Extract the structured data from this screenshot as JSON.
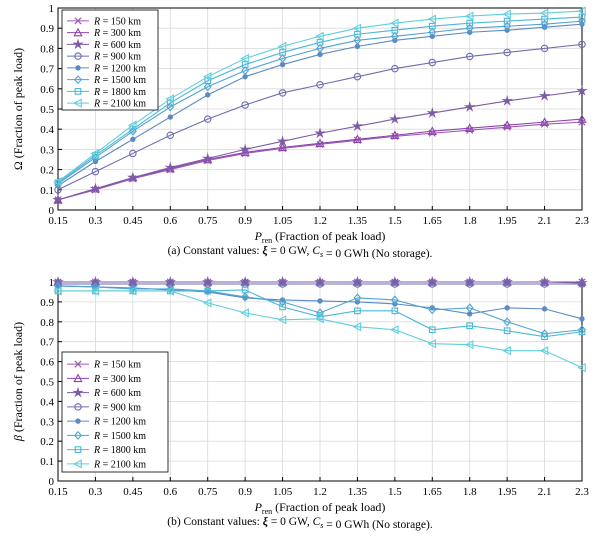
{
  "chart_data": [
    {
      "type": "line",
      "caption": "(a) Constant values: ξ = 0 GW,  Cs = 0 GWh  (No storage).",
      "xlabel": "Pren (Fraction of peak load)",
      "ylabel": "Ω (Fraction of peak load)",
      "x": [
        0.15,
        0.3,
        0.45,
        0.6,
        0.75,
        0.9,
        1.05,
        1.2,
        1.35,
        1.5,
        1.65,
        1.8,
        1.95,
        2.1,
        2.3
      ],
      "x_tick_labels": [
        "0.15",
        "0.3",
        "0.45",
        "0.6",
        "0.75",
        "0.9",
        "1.05",
        "1.2",
        "1.35",
        "1.5",
        "1.65",
        "1.8",
        "1.95",
        "2.1",
        "2.3"
      ],
      "xlim": [
        0.15,
        2.3
      ],
      "ylim": [
        0,
        1
      ],
      "y_ticks": [
        0,
        0.1,
        0.2,
        0.3,
        0.4,
        0.5,
        0.6,
        0.7,
        0.8,
        0.9,
        1
      ],
      "y_tick_labels": [
        "0",
        "0.1",
        "0.2",
        "0.3",
        "0.4",
        "0.5",
        "0.6",
        "0.7",
        "0.8",
        "0.9",
        "1"
      ],
      "grid": true,
      "legend_position": "top-left",
      "series": [
        {
          "name": "R = 150 km",
          "color": "#9b59b6",
          "marker": "x",
          "values": [
            0.05,
            0.1,
            0.155,
            0.2,
            0.245,
            0.28,
            0.305,
            0.325,
            0.345,
            0.365,
            0.38,
            0.395,
            0.41,
            0.425,
            0.435
          ]
        },
        {
          "name": "R = 300 km",
          "color": "#8e44ad",
          "marker": "triangle-up",
          "values": [
            0.05,
            0.105,
            0.16,
            0.205,
            0.25,
            0.285,
            0.31,
            0.33,
            0.35,
            0.37,
            0.39,
            0.405,
            0.42,
            0.435,
            0.45
          ]
        },
        {
          "name": "R = 600 km",
          "color": "#7d5ba6",
          "marker": "star",
          "values": [
            0.05,
            0.105,
            0.16,
            0.21,
            0.255,
            0.3,
            0.34,
            0.38,
            0.415,
            0.45,
            0.48,
            0.51,
            0.54,
            0.565,
            0.59
          ]
        },
        {
          "name": "R = 900 km",
          "color": "#6c6fb0",
          "marker": "circle",
          "values": [
            0.1,
            0.19,
            0.28,
            0.37,
            0.45,
            0.52,
            0.58,
            0.62,
            0.66,
            0.7,
            0.73,
            0.76,
            0.78,
            0.8,
            0.82
          ]
        },
        {
          "name": "R = 1200 km",
          "color": "#5d8ac4",
          "marker": "dot",
          "values": [
            0.12,
            0.24,
            0.35,
            0.46,
            0.57,
            0.66,
            0.72,
            0.77,
            0.81,
            0.84,
            0.86,
            0.88,
            0.89,
            0.905,
            0.92
          ]
        },
        {
          "name": "R = 1500 km",
          "color": "#4fa3d1",
          "marker": "diamond",
          "values": [
            0.13,
            0.26,
            0.39,
            0.51,
            0.61,
            0.69,
            0.75,
            0.8,
            0.84,
            0.86,
            0.88,
            0.9,
            0.91,
            0.92,
            0.935
          ]
        },
        {
          "name": "R = 1800 km",
          "color": "#4ab8d6",
          "marker": "square",
          "values": [
            0.135,
            0.27,
            0.4,
            0.53,
            0.64,
            0.72,
            0.78,
            0.83,
            0.87,
            0.89,
            0.91,
            0.925,
            0.935,
            0.945,
            0.955
          ]
        },
        {
          "name": "R = 2100 km",
          "color": "#5fcfdc",
          "marker": "triangle-left",
          "values": [
            0.14,
            0.28,
            0.42,
            0.55,
            0.66,
            0.75,
            0.81,
            0.86,
            0.9,
            0.925,
            0.945,
            0.96,
            0.97,
            0.975,
            0.985
          ]
        }
      ]
    },
    {
      "type": "line",
      "caption": "(b) Constant values: ξ = 0 GW,  Cs = 0 GWh  (No storage).",
      "xlabel": "Pren (Fraction of peak load)",
      "ylabel": "β (Fraction of peak load)",
      "x": [
        0.15,
        0.3,
        0.45,
        0.6,
        0.75,
        0.9,
        1.05,
        1.2,
        1.35,
        1.5,
        1.65,
        1.8,
        1.95,
        2.1,
        2.3
      ],
      "x_tick_labels": [
        "0.15",
        "0.3",
        "0.45",
        "0.6",
        "0.75",
        "0.9",
        "1.05",
        "1.2",
        "1.35",
        "1.5",
        "1.65",
        "1.8",
        "1.95",
        "2.1",
        "2.3"
      ],
      "xlim": [
        0.15,
        2.3
      ],
      "ylim": [
        0,
        1
      ],
      "y_ticks": [
        0,
        0.1,
        0.2,
        0.3,
        0.4,
        0.5,
        0.6,
        0.7,
        0.8,
        0.9,
        1
      ],
      "y_tick_labels": [
        "0",
        "0.1",
        "0.2",
        "0.3",
        "0.4",
        "0.5",
        "0.6",
        "0.7",
        "0.8",
        "0.9",
        "1"
      ],
      "grid": true,
      "legend_position": "center-left",
      "series": [
        {
          "name": "R = 150 km",
          "color": "#9b59b6",
          "marker": "x",
          "values": [
            1,
            1,
            1,
            1,
            1,
            1,
            1,
            1,
            1,
            1,
            1,
            1,
            1,
            1,
            1
          ]
        },
        {
          "name": "R = 300 km",
          "color": "#8e44ad",
          "marker": "triangle-up",
          "values": [
            1,
            1,
            1,
            1,
            1,
            1,
            1,
            1,
            1,
            1,
            1,
            1,
            1,
            1,
            1
          ]
        },
        {
          "name": "R = 600 km",
          "color": "#7d5ba6",
          "marker": "star",
          "values": [
            1,
            1,
            1,
            1,
            1,
            1,
            1,
            1,
            1,
            1,
            1,
            1,
            1,
            1,
            0.995
          ]
        },
        {
          "name": "R = 900 km",
          "color": "#6c6fb0",
          "marker": "circle",
          "values": [
            0.99,
            0.99,
            0.99,
            0.99,
            0.99,
            0.99,
            0.99,
            0.99,
            0.99,
            0.99,
            0.99,
            0.99,
            0.99,
            0.99,
            0.99
          ]
        },
        {
          "name": "R = 1200 km",
          "color": "#5d8ac4",
          "marker": "dot",
          "values": [
            0.98,
            0.975,
            0.97,
            0.96,
            0.95,
            0.92,
            0.91,
            0.905,
            0.9,
            0.89,
            0.87,
            0.84,
            0.87,
            0.865,
            0.815
          ]
        },
        {
          "name": "R = 1500 km",
          "color": "#4fa3d1",
          "marker": "diamond",
          "values": [
            0.98,
            0.975,
            0.965,
            0.965,
            0.955,
            0.925,
            0.9,
            0.845,
            0.92,
            0.91,
            0.86,
            0.87,
            0.8,
            0.74,
            0.76
          ]
        },
        {
          "name": "R = 1800 km",
          "color": "#4ab8d6",
          "marker": "square",
          "values": [
            0.955,
            0.955,
            0.955,
            0.955,
            0.955,
            0.96,
            0.875,
            0.825,
            0.855,
            0.855,
            0.76,
            0.78,
            0.755,
            0.725,
            0.75
          ]
        },
        {
          "name": "R = 2100 km",
          "color": "#5fcfdc",
          "marker": "triangle-left",
          "values": [
            0.955,
            0.955,
            0.955,
            0.955,
            0.895,
            0.845,
            0.81,
            0.815,
            0.775,
            0.76,
            0.69,
            0.685,
            0.655,
            0.655,
            0.57
          ]
        }
      ]
    }
  ]
}
